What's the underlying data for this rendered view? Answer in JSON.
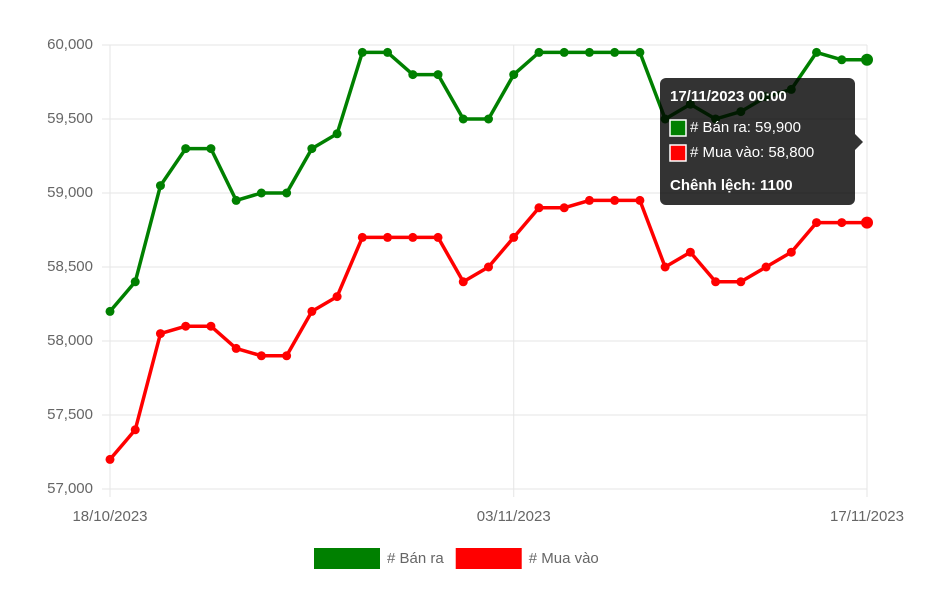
{
  "chart_data": {
    "type": "line",
    "categories": [
      "18/10/2023",
      null,
      null,
      null,
      null,
      null,
      null,
      null,
      null,
      null,
      null,
      null,
      null,
      null,
      null,
      null,
      "03/11/2023",
      null,
      null,
      null,
      null,
      null,
      null,
      null,
      null,
      null,
      null,
      null,
      null,
      null,
      "17/11/2023"
    ],
    "series": [
      {
        "name": "# Bán ra",
        "color": "#008000",
        "values": [
          58200,
          58400,
          59050,
          59300,
          59300,
          58950,
          59000,
          59000,
          59300,
          59400,
          59950,
          59950,
          59800,
          59800,
          59500,
          59500,
          59800,
          59950,
          59950,
          59950,
          59950,
          59950,
          59500,
          59600,
          59500,
          59550,
          59650,
          59700,
          59950,
          59900,
          59900
        ]
      },
      {
        "name": "# Mua vào",
        "color": "#ff0000",
        "values": [
          57200,
          57400,
          58050,
          58100,
          58100,
          57950,
          57900,
          57900,
          58200,
          58300,
          58700,
          58700,
          58700,
          58700,
          58400,
          58500,
          58700,
          58900,
          58900,
          58950,
          58950,
          58950,
          58500,
          58600,
          58400,
          58400,
          58500,
          58600,
          58800,
          58800,
          58800
        ]
      }
    ],
    "ylim": [
      57000,
      60000
    ],
    "yticks": [
      {
        "value": 57000,
        "label": "57,000"
      },
      {
        "value": 57500,
        "label": "57,500"
      },
      {
        "value": 58000,
        "label": "58,000"
      },
      {
        "value": 58500,
        "label": "58,500"
      },
      {
        "value": 59000,
        "label": "59,000"
      },
      {
        "value": 59500,
        "label": "59,500"
      },
      {
        "value": 60000,
        "label": "60,000"
      }
    ],
    "grid": true,
    "legend": "bottom",
    "tooltip": {
      "title": "17/11/2023 00:00",
      "lines": [
        "# Bán ra: 59,900",
        "# Mua vào: 58,800"
      ],
      "footer": "Chênh lệch: 1100"
    }
  }
}
